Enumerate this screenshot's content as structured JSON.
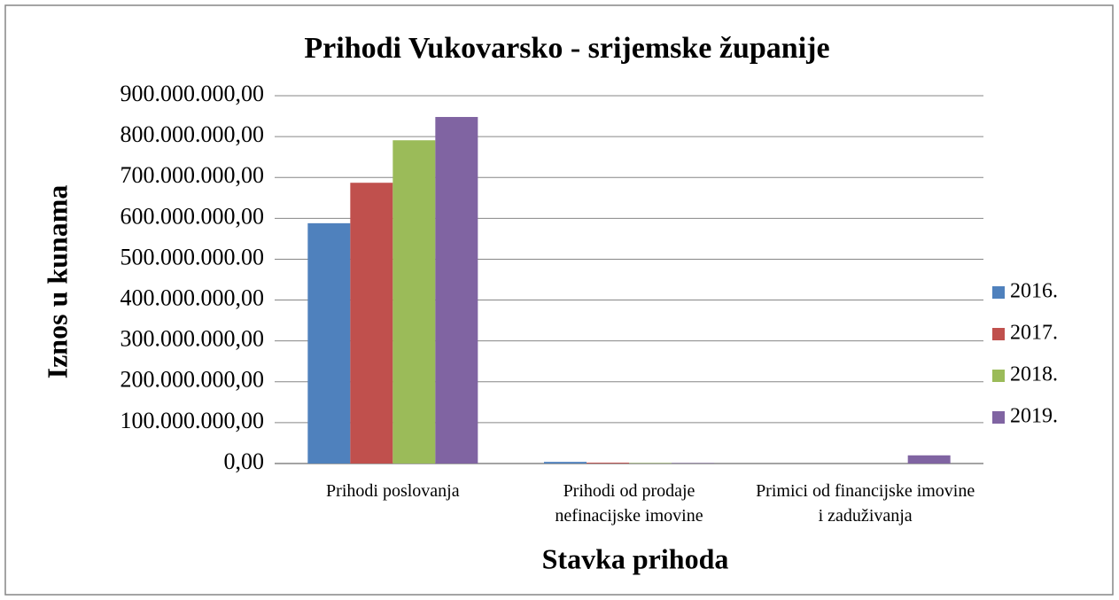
{
  "chart_data": {
    "type": "bar",
    "title": "Prihodi Vukovarsko - srijemske županije",
    "x_label": "Stavka prihoda",
    "y_label": "Iznos u kunama",
    "categories": [
      "Prihodi poslovanja",
      "Prihodi od prodaje nefinacijske imovine",
      "Primici od financijske imovine i zaduživanja"
    ],
    "series": [
      {
        "name": "2016.",
        "color": "#4f81bd",
        "values": [
          588000000,
          4000000,
          0
        ]
      },
      {
        "name": "2017.",
        "color": "#c0504d",
        "values": [
          687000000,
          2000000,
          0
        ]
      },
      {
        "name": "2018.",
        "color": "#9bbb59",
        "values": [
          791000000,
          1000000,
          0
        ]
      },
      {
        "name": "2019.",
        "color": "#8064a2",
        "values": [
          848000000,
          1000000,
          20000000
        ]
      }
    ],
    "ylim": [
      0,
      900000000
    ],
    "yticks": [
      {
        "value": 0,
        "label": "0,00"
      },
      {
        "value": 100000000,
        "label": "100.000.000,00"
      },
      {
        "value": 200000000,
        "label": "200.000.000,00"
      },
      {
        "value": 300000000,
        "label": "300.000.000,00"
      },
      {
        "value": 400000000,
        "label": "400.000.000,00"
      },
      {
        "value": 500000000,
        "label": "500.000.000.00"
      },
      {
        "value": 600000000,
        "label": "600.000.000,00"
      },
      {
        "value": 700000000,
        "label": "700.000.000,00"
      },
      {
        "value": 800000000,
        "label": "800.000.000,00"
      },
      {
        "value": 900000000,
        "label": "900.000.000,00"
      }
    ],
    "grid": true,
    "legend": "right"
  }
}
